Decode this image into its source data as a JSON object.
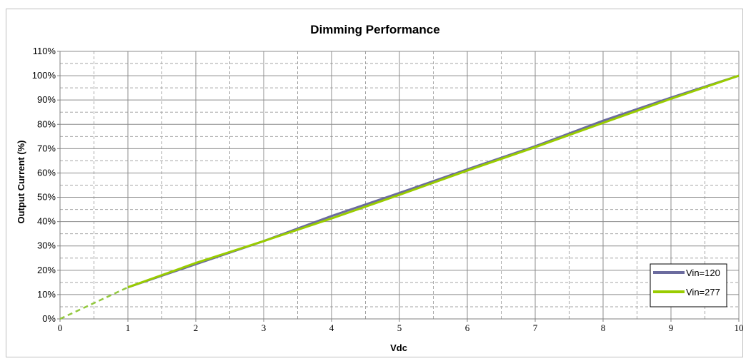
{
  "chart_data": {
    "type": "line",
    "title": "Dimming Performance",
    "xlabel": "Vdc",
    "ylabel": "Output Current (%)",
    "xlim": [
      0,
      10
    ],
    "ylim": [
      0,
      110
    ],
    "x_ticks": [
      "0",
      "1",
      "2",
      "3",
      "4",
      "5",
      "6",
      "7",
      "8",
      "9",
      "10"
    ],
    "y_ticks": [
      "0%",
      "10%",
      "20%",
      "30%",
      "40%",
      "50%",
      "60%",
      "70%",
      "80%",
      "90%",
      "100%",
      "110%"
    ],
    "grid": true,
    "legend_position": "bottom-right",
    "extrapolation": {
      "style": "dashed",
      "x": [
        0,
        1
      ],
      "y": [
        0,
        13
      ],
      "color": "#92c83e"
    },
    "series": [
      {
        "name": "Vin=120",
        "color": "#6b6b9e",
        "x": [
          1,
          2,
          3,
          4,
          5,
          6,
          7,
          8,
          9,
          10
        ],
        "y": [
          13,
          22.5,
          32,
          42.3,
          51.8,
          61.5,
          71,
          81.5,
          91,
          100
        ]
      },
      {
        "name": "Vin=277",
        "color": "#99cc00",
        "x": [
          1,
          2,
          3,
          4,
          5,
          6,
          7,
          8,
          9,
          10
        ],
        "y": [
          13,
          23,
          32,
          41.3,
          51,
          61,
          70.6,
          80.6,
          90.5,
          100
        ]
      }
    ]
  }
}
